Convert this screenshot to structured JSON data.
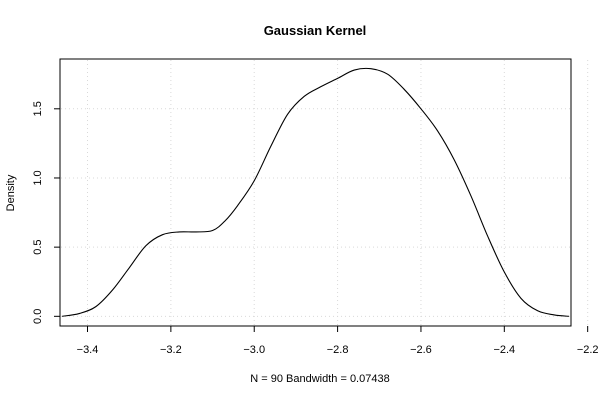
{
  "chart_data": {
    "type": "line",
    "title": "Gaussian Kernel",
    "xlabel": "N = 90   Bandwidth = 0.07438",
    "ylabel": "Density",
    "xlim": [
      -3.466,
      -2.24
    ],
    "ylim": [
      -0.07,
      1.86
    ],
    "grid": true,
    "legend": "none",
    "x_ticks": [
      -3.4,
      -3.2,
      -3.0,
      -2.8,
      -2.6,
      -2.4,
      -2.2
    ],
    "x_tick_labels": [
      "−3.4",
      "−3.2",
      "−3.0",
      "−2.8",
      "−2.6",
      "−2.4",
      "−2.2"
    ],
    "y_ticks": [
      0.0,
      0.5,
      1.0,
      1.5
    ],
    "y_tick_labels": [
      "0.0",
      "0.5",
      "1.0",
      "1.5"
    ],
    "series": [
      {
        "x": [
          -3.461,
          -3.42,
          -3.38,
          -3.34,
          -3.3,
          -3.26,
          -3.22,
          -3.18,
          -3.14,
          -3.1,
          -3.07,
          -3.04,
          -3.0,
          -2.96,
          -2.92,
          -2.88,
          -2.84,
          -2.8,
          -2.76,
          -2.72,
          -2.68,
          -2.64,
          -2.6,
          -2.56,
          -2.52,
          -2.48,
          -2.44,
          -2.4,
          -2.36,
          -2.32,
          -2.28,
          -2.245
        ],
        "y": [
          0.0,
          0.02,
          0.07,
          0.19,
          0.35,
          0.51,
          0.59,
          0.61,
          0.61,
          0.62,
          0.69,
          0.8,
          0.98,
          1.23,
          1.46,
          1.59,
          1.66,
          1.72,
          1.78,
          1.79,
          1.75,
          1.64,
          1.5,
          1.34,
          1.13,
          0.87,
          0.58,
          0.32,
          0.13,
          0.04,
          0.01,
          0.0
        ]
      }
    ]
  }
}
